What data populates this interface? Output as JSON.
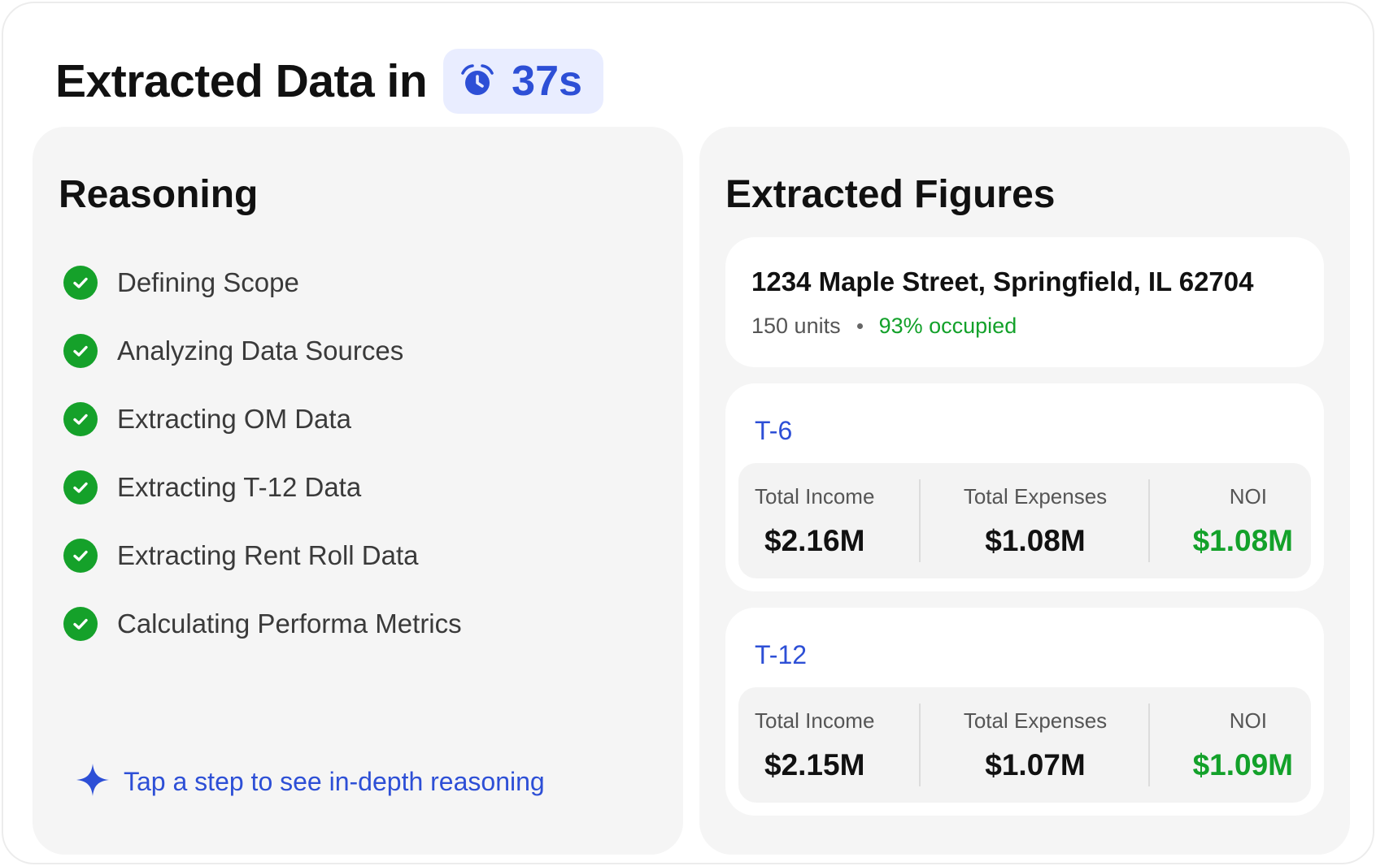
{
  "header": {
    "title": "Extracted Data in",
    "timer_value": "37s",
    "timer_icon": "alarm-clock-icon"
  },
  "colors": {
    "accent_blue": "#2d4fd6",
    "success_green": "#15a12a",
    "panel_bg": "#f5f5f5"
  },
  "reasoning": {
    "title": "Reasoning",
    "steps": [
      {
        "label": "Defining Scope",
        "status": "done"
      },
      {
        "label": "Analyzing Data Sources",
        "status": "done"
      },
      {
        "label": "Extracting OM Data",
        "status": "done"
      },
      {
        "label": "Extracting T-12 Data",
        "status": "done"
      },
      {
        "label": "Extracting Rent Roll Data",
        "status": "done"
      },
      {
        "label": "Calculating Performa Metrics",
        "status": "done"
      }
    ],
    "hint": "Tap a step to see in-depth reasoning",
    "hint_icon": "sparkle-icon"
  },
  "figures": {
    "title": "Extracted Figures",
    "property": {
      "address": "1234 Maple Street, Springfield, IL 62704",
      "units": "150 units",
      "occupancy": "93% occupied"
    },
    "periods": [
      {
        "label": "T-6",
        "metrics": [
          {
            "label": "Total Income",
            "value": "$2.16M"
          },
          {
            "label": "Total Expenses",
            "value": "$1.08M"
          },
          {
            "label": "NOI",
            "value": "$1.08M"
          }
        ]
      },
      {
        "label": "T-12",
        "metrics": [
          {
            "label": "Total Income",
            "value": "$2.15M"
          },
          {
            "label": "Total Expenses",
            "value": "$1.07M"
          },
          {
            "label": "NOI",
            "value": "$1.09M"
          }
        ]
      }
    ]
  }
}
